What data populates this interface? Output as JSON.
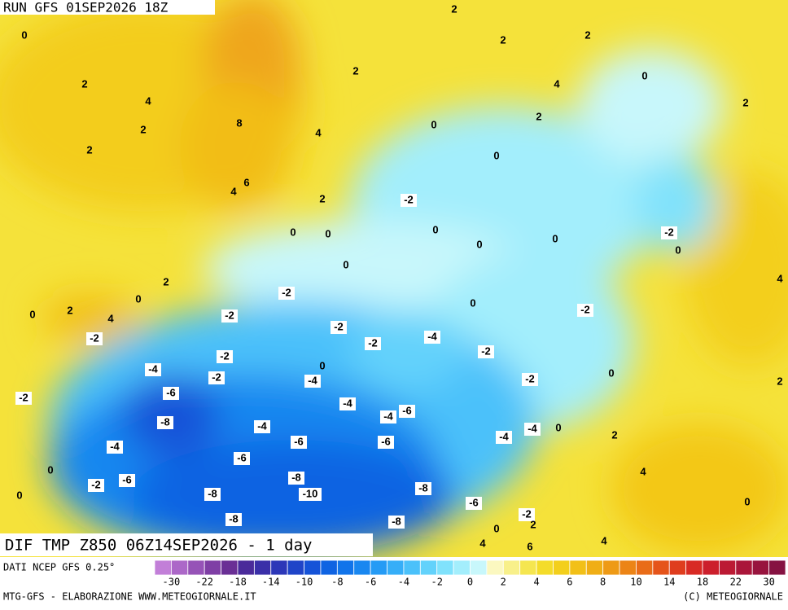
{
  "header": {
    "run": "RUN GFS 01SEP2026 18Z"
  },
  "map": {
    "title": "DIF TMP Z850 06Z14SEP2026 - 1 day",
    "labels": [
      0,
      2,
      2,
      2,
      2,
      4,
      2,
      0,
      4,
      2,
      2,
      8,
      4,
      0,
      2,
      2,
      0,
      6,
      4,
      2,
      -2,
      0,
      0,
      0,
      0,
      0,
      -2,
      0,
      0,
      2,
      4,
      -2,
      0,
      0,
      2,
      4,
      -2,
      0,
      -2,
      -2,
      -2,
      -2,
      -4,
      -2,
      -2,
      0,
      -4,
      -2,
      -4,
      -2,
      0,
      2,
      -6,
      -2,
      -4,
      -6,
      -4,
      -8,
      -4,
      -4,
      0,
      -4,
      -6,
      -6,
      2,
      -4,
      -6,
      0,
      4,
      -8,
      -6,
      -2,
      -8,
      -10,
      -8,
      0,
      -6,
      0,
      -2,
      -8,
      -8,
      2,
      0,
      4,
      6,
      4
    ]
  },
  "colorbar": {
    "colors": [
      "#c27fd8",
      "#ac68c8",
      "#9653b7",
      "#7f3fa5",
      "#6a2f95",
      "#4a2a9a",
      "#3a2fa8",
      "#2c37b8",
      "#1f44c8",
      "#1553d8",
      "#0f63e2",
      "#1174ea",
      "#1987f0",
      "#259bf5",
      "#36aef8",
      "#4bc1fa",
      "#63d2fb",
      "#80e2fc",
      "#a3eefc",
      "#c8f7fb",
      "#fbf8c0",
      "#f8f08a",
      "#f5e650",
      "#f4dc2a",
      "#f3cf1c",
      "#f2c018",
      "#f0ae16",
      "#ee9a16",
      "#ec8416",
      "#e96c18",
      "#e5541a",
      "#df3d1e",
      "#d82a24",
      "#cc1f2c",
      "#bc1a34",
      "#aa163a",
      "#98143e",
      "#861242"
    ],
    "ticks": [
      -30,
      -22,
      -18,
      -14,
      -10,
      -8,
      -6,
      -4,
      -2,
      0,
      2,
      4,
      6,
      8,
      10,
      14,
      18,
      22,
      30
    ]
  },
  "footer": {
    "source": "DATI NCEP GFS 0.25°",
    "credit": "MTG-GFS - ELABORAZIONE WWW.METEOGIORNALE.IT",
    "copyright": "(C) METEOGIORNALE"
  }
}
